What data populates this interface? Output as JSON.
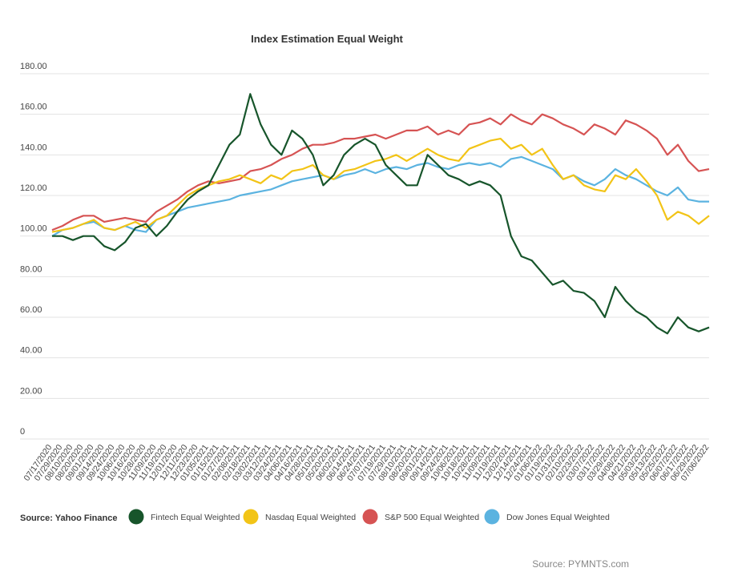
{
  "chart_data": {
    "type": "line",
    "title": "Index Estimation Equal Weight",
    "source": "Source: Yahoo Finance",
    "credit": "Source: PYMNTS.com",
    "legend": "bottom",
    "grid": true,
    "ylim": [
      0,
      180
    ],
    "yticks": [
      0,
      {
        "value": 20,
        "label": "20.00"
      },
      {
        "value": 40,
        "label": "40.00"
      },
      {
        "value": 60,
        "label": "60.00"
      },
      {
        "value": 80,
        "label": "80.00"
      },
      {
        "value": 100,
        "label": "100.00"
      },
      {
        "value": 120,
        "label": "120.00"
      },
      {
        "value": 140,
        "label": "140.00"
      },
      {
        "value": 160,
        "label": "160.00"
      },
      {
        "value": 180,
        "label": "180.00"
      }
    ],
    "categories": [
      "07/17/2020",
      "07/29/2020",
      "08/10/2020",
      "08/20/2020",
      "09/01/2020",
      "09/14/2020",
      "09/24/2020",
      "10/06/2020",
      "10/16/2020",
      "10/28/2020",
      "11/09/2020",
      "11/19/2020",
      "12/01/2020",
      "12/11/2020",
      "12/23/2020",
      "01/05/2021",
      "01/15/2021",
      "01/27/2021",
      "02/08/2021",
      "02/18/2021",
      "03/02/2021",
      "03/12/2021",
      "03/24/2021",
      "04/06/2021",
      "04/16/2021",
      "04/28/2021",
      "05/10/2021",
      "05/20/2021",
      "06/02/2021",
      "06/14/2021",
      "06/24/2021",
      "07/07/2021",
      "07/19/2021",
      "07/29/2021",
      "08/10/2021",
      "08/20/2021",
      "09/01/2021",
      "09/14/2021",
      "09/24/2021",
      "10/06/2021",
      "10/18/2021",
      "10/28/2021",
      "11/09/2021",
      "11/19/2021",
      "12/02/2021",
      "12/14/2021",
      "12/24/2021",
      "01/06/2022",
      "01/19/2022",
      "01/31/2022",
      "02/10/2022",
      "02/23/2022",
      "03/07/2022",
      "03/17/2022",
      "03/29/2022",
      "04/08/2022",
      "04/21/2022",
      "05/03/2022",
      "05/13/2022",
      "05/25/2022",
      "06/07/2022",
      "06/17/2022",
      "06/29/2022",
      "07/06/2022"
    ],
    "series": [
      {
        "name": "Fintech Equal Weighted",
        "color": "#17552b",
        "values": [
          100,
          100,
          98,
          100,
          100,
          95,
          93,
          97,
          104,
          106,
          100,
          105,
          112,
          118,
          122,
          125,
          135,
          145,
          150,
          170,
          155,
          145,
          140,
          152,
          148,
          140,
          125,
          130,
          140,
          145,
          148,
          145,
          135,
          130,
          125,
          125,
          140,
          135,
          130,
          128,
          125,
          127,
          125,
          120,
          100,
          90,
          88,
          82,
          76,
          78,
          73,
          72,
          68,
          60,
          75,
          68,
          63,
          60,
          55,
          52,
          60,
          55,
          53,
          55
        ]
      },
      {
        "name": "Nasdaq Equal Weighted",
        "color": "#f2c417",
        "values": [
          102,
          103,
          104,
          106,
          108,
          104,
          103,
          105,
          107,
          104,
          108,
          110,
          115,
          120,
          123,
          125,
          127,
          128,
          130,
          128,
          126,
          130,
          128,
          132,
          133,
          135,
          130,
          128,
          132,
          133,
          135,
          137,
          138,
          140,
          137,
          140,
          143,
          140,
          138,
          137,
          143,
          145,
          147,
          148,
          143,
          145,
          140,
          143,
          135,
          128,
          130,
          125,
          123,
          122,
          130,
          128,
          133,
          127,
          120,
          108,
          112,
          110,
          106,
          110
        ]
      },
      {
        "name": "S&P 500 Equal Weighted",
        "color": "#d65353",
        "values": [
          103,
          105,
          108,
          110,
          110,
          107,
          108,
          109,
          108,
          107,
          112,
          115,
          118,
          122,
          125,
          127,
          126,
          127,
          128,
          132,
          133,
          135,
          138,
          140,
          143,
          145,
          145,
          146,
          148,
          148,
          149,
          150,
          148,
          150,
          152,
          152,
          154,
          150,
          152,
          150,
          155,
          156,
          158,
          155,
          160,
          157,
          155,
          160,
          158,
          155,
          153,
          150,
          155,
          153,
          150,
          157,
          155,
          152,
          148,
          140,
          145,
          137,
          132,
          133
        ]
      },
      {
        "name": "Dow Jones Equal Weighted",
        "color": "#5bb3e0",
        "values": [
          100,
          103,
          104,
          106,
          107,
          104,
          103,
          105,
          103,
          102,
          108,
          110,
          112,
          114,
          115,
          116,
          117,
          118,
          120,
          121,
          122,
          123,
          125,
          127,
          128,
          129,
          130,
          128,
          130,
          131,
          133,
          131,
          133,
          134,
          133,
          135,
          136,
          134,
          133,
          135,
          136,
          135,
          136,
          134,
          138,
          139,
          137,
          135,
          133,
          128,
          130,
          127,
          125,
          128,
          133,
          130,
          128,
          125,
          122,
          120,
          124,
          118,
          117,
          117
        ]
      }
    ]
  }
}
